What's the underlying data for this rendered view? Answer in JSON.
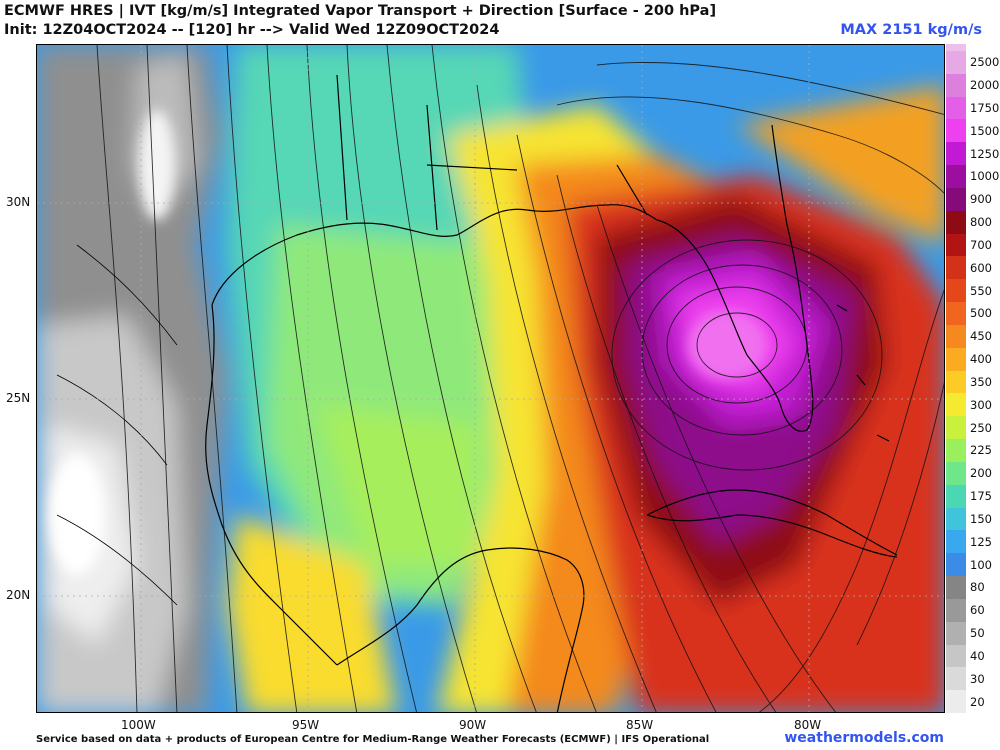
{
  "header": {
    "title_line1": "ECMWF HRES | IVT [kg/m/s] Integrated Vapor Transport + Direction [Surface - 200 hPa]",
    "title_line2": "Init: 12Z04OCT2024 -- [120] hr --> Valid Wed 12Z09OCT2024",
    "max_label": "MAX 2151 kg/m/s"
  },
  "map": {
    "lat_labels": [
      "30N",
      "25N",
      "20N"
    ],
    "lon_labels": [
      "100W",
      "95W",
      "90W",
      "85W",
      "80W"
    ],
    "background_field": "IVT",
    "features": [
      "Gulf of Mexico",
      "Florida peninsula",
      "Yucatan Peninsula",
      "Cuba"
    ]
  },
  "colorbar": {
    "levels": [
      "2500",
      "2000",
      "1750",
      "1500",
      "1250",
      "1000",
      "900",
      "800",
      "700",
      "600",
      "550",
      "500",
      "450",
      "400",
      "350",
      "300",
      "250",
      "225",
      "200",
      "175",
      "150",
      "125",
      "100",
      "80",
      "60",
      "50",
      "40",
      "30",
      "20"
    ],
    "colors": [
      "#e7a8e6",
      "#dd7fdd",
      "#e45ee7",
      "#ee40ee",
      "#c21ad4",
      "#9c0ea0",
      "#850a7a",
      "#8e0b16",
      "#b11413",
      "#d23218",
      "#e4471a",
      "#f0661e",
      "#f5881f",
      "#fbab22",
      "#fccb25",
      "#f6ea30",
      "#c9f03d",
      "#99ef5c",
      "#6fe68a",
      "#4bd7b4",
      "#40c4dc",
      "#3aa8ee",
      "#3a8ce6",
      "#858585",
      "#999999",
      "#b0b0b0",
      "#c6c6c6",
      "#dadada",
      "#ececec"
    ]
  },
  "footer": {
    "credit": "Service based on data + products of European Centre for Medium-Range Weather Forecasts (ECMWF) | IFS Operational",
    "site": "weathermodels.com"
  }
}
